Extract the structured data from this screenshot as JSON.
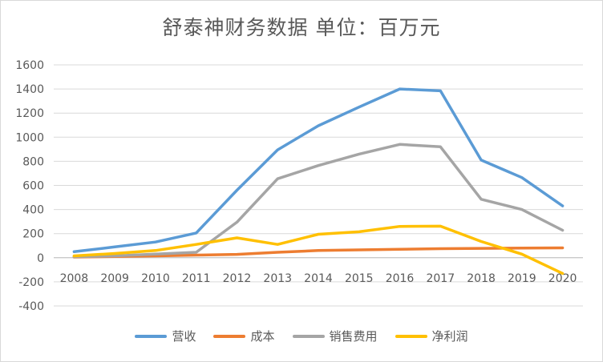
{
  "chart_data": {
    "type": "line",
    "title": "舒泰神财务数据  单位：百万元",
    "xlabel": "",
    "ylabel": "",
    "categories": [
      "2008",
      "2009",
      "2010",
      "2011",
      "2012",
      "2013",
      "2014",
      "2015",
      "2016",
      "2017",
      "2018",
      "2019",
      "2020"
    ],
    "ylim": [
      -400,
      1600
    ],
    "yticks": [
      -400,
      -200,
      0,
      200,
      400,
      600,
      800,
      1000,
      1200,
      1400,
      1600
    ],
    "grid": true,
    "legend_position": "bottom",
    "series": [
      {
        "name": "营收",
        "color": "#5b9bd5",
        "values": [
          50,
          90,
          130,
          205,
          560,
          895,
          1095,
          1250,
          1400,
          1385,
          810,
          665,
          430
        ]
      },
      {
        "name": "成本",
        "color": "#ed7d31",
        "values": [
          5,
          10,
          15,
          22,
          28,
          45,
          60,
          65,
          70,
          75,
          78,
          80,
          82
        ]
      },
      {
        "name": "销售费用",
        "color": "#a5a5a5",
        "values": [
          8,
          15,
          30,
          45,
          295,
          655,
          765,
          860,
          940,
          920,
          485,
          400,
          228
        ]
      },
      {
        "name": "净利润",
        "color": "#ffc000",
        "values": [
          15,
          35,
          60,
          110,
          165,
          110,
          195,
          215,
          260,
          262,
          135,
          30,
          -130
        ]
      }
    ]
  }
}
